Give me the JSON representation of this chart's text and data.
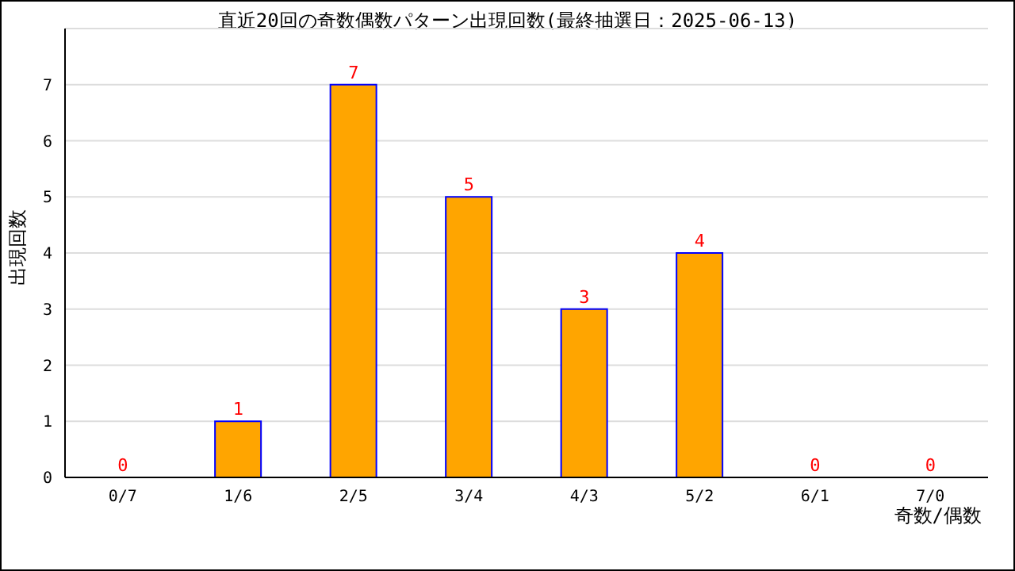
{
  "chart_data": {
    "type": "bar",
    "title": "直近20回の奇数偶数パターン出現回数(最終抽選日：2025-06-13)",
    "xlabel": "奇数/偶数",
    "ylabel": "出現回数",
    "categories": [
      "0/7",
      "1/6",
      "2/5",
      "3/4",
      "4/3",
      "5/2",
      "6/1",
      "7/0"
    ],
    "values": [
      0,
      1,
      7,
      5,
      3,
      4,
      0,
      0
    ],
    "color": "#ffa500",
    "ylim": [
      0,
      8
    ],
    "yticks": [
      0,
      1,
      2,
      3,
      4,
      5,
      6,
      7
    ],
    "grid": "y",
    "data_labels": true
  }
}
